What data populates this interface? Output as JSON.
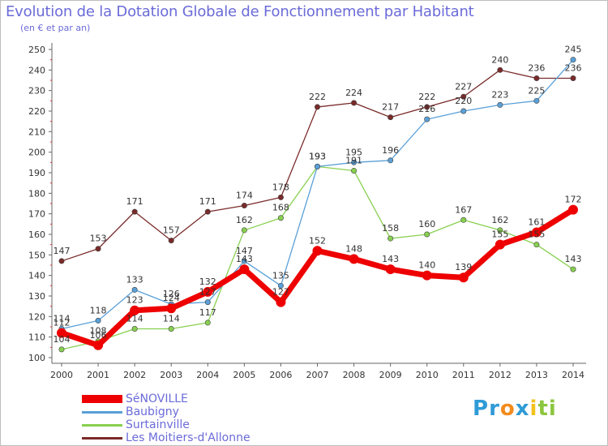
{
  "header": {
    "title": "Evolution de la Dotation Globale de Fonctionnement par Habitant",
    "subtitle": "(en € et par an)"
  },
  "brand": {
    "letters": [
      {
        "char": "P",
        "color": "#2f9bd6"
      },
      {
        "char": "r",
        "color": "#2f9bd6"
      },
      {
        "char": "o",
        "color": "#f28c1e"
      },
      {
        "char": "x",
        "color": "#2f9bd6"
      },
      {
        "char": "i",
        "color": "#f2c21e"
      },
      {
        "char": "t",
        "color": "#8cc63f"
      },
      {
        "char": "i",
        "color": "#8cc63f"
      }
    ]
  },
  "chart_data": {
    "type": "line",
    "title": "Evolution de la Dotation Globale de Fonctionnement par Habitant",
    "subtitle": "(en € et par an)",
    "x": [
      "2000",
      "2001",
      "2002",
      "2003",
      "2004",
      "2005",
      "2006",
      "2007",
      "2008",
      "2009",
      "2010",
      "2011",
      "2012",
      "2013",
      "2014"
    ],
    "ylim": [
      100,
      250
    ],
    "yticks": [
      100,
      110,
      120,
      130,
      140,
      150,
      160,
      170,
      180,
      190,
      200,
      210,
      220,
      230,
      240,
      250
    ],
    "grid": false,
    "legend_placement": "bottom-left",
    "series": [
      {
        "name": "SéNOVILLE",
        "color": "#ee0000",
        "values": [
          112,
          106,
          123,
          124,
          132,
          143,
          127,
          152,
          148,
          143,
          140,
          139,
          155,
          161,
          172
        ],
        "labels": [
          "112",
          "106",
          "123",
          "124",
          "132",
          "143",
          "127",
          "152",
          "148",
          "143",
          "140",
          "139",
          "155",
          "161",
          "172"
        ]
      },
      {
        "name": "Baubigny",
        "color": "#5aa0d8",
        "values": [
          114,
          118,
          133,
          126,
          127,
          147,
          135,
          193,
          195,
          196,
          216,
          220,
          223,
          225,
          245
        ],
        "labels": [
          "114",
          "118",
          "133",
          "126",
          "127",
          "147",
          "135",
          "193",
          "195",
          "196",
          "216",
          "220",
          "223",
          "225",
          "245"
        ]
      },
      {
        "name": "Surtainville",
        "color": "#88d050",
        "values": [
          104,
          108,
          114,
          114,
          117,
          162,
          168,
          193,
          191,
          158,
          160,
          167,
          162,
          155,
          143
        ],
        "labels": [
          "104",
          "108",
          "114",
          "114",
          "117",
          "162",
          "168",
          "193",
          "191",
          "158",
          "160",
          "167",
          "162",
          "155",
          "143"
        ]
      },
      {
        "name": "Les Moitiers-d'Allonne",
        "color": "#7a2a2a",
        "values": [
          147,
          153,
          171,
          157,
          171,
          174,
          178,
          222,
          224,
          217,
          222,
          227,
          240,
          236,
          236
        ],
        "labels": [
          "147",
          "153",
          "171",
          "157",
          "171",
          "174",
          "178",
          "222",
          "224",
          "217",
          "222",
          "227",
          "240",
          "236",
          "236"
        ]
      }
    ]
  }
}
